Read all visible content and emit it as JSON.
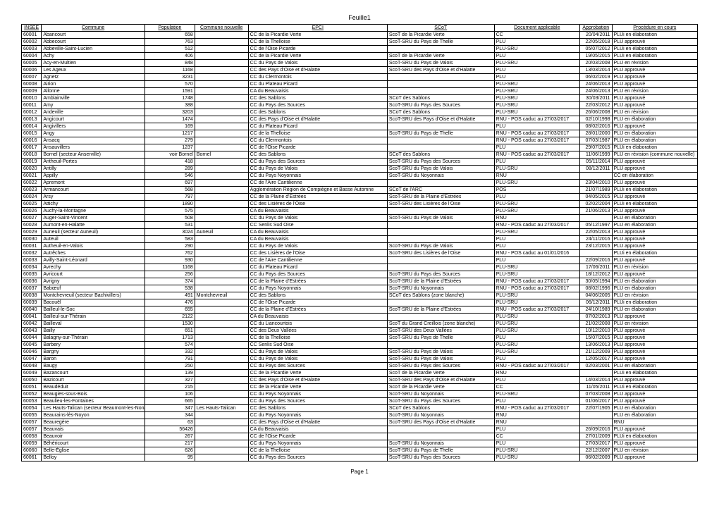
{
  "title": "Feuille1",
  "footer": "Page 1",
  "headers": [
    "INSEE",
    "Commune",
    "Population",
    "Commune nouvelle",
    "EPCI",
    "SCoT",
    "Document applicable",
    "Approbation",
    "Procédure en cours"
  ],
  "rows": [
    [
      "60001",
      "Abancourt",
      "658",
      "",
      "CC de la Picardie Verte",
      "ScoT de la Picardie Verte",
      "CC",
      "20/04/2011",
      "PLUi en élaboration"
    ],
    [
      "60002",
      "Abbecourt",
      "763",
      "",
      "CC de la Thelloise",
      "ScoT-SRU du Pays de Thelle",
      "PLU",
      "22/05/2018",
      "PLU approuvé"
    ],
    [
      "60003",
      "Abbeville-Saint-Lucien",
      "512",
      "",
      "CC de l'Oise Picarde",
      "",
      "PLU-SRU",
      "05/07/2012",
      "PLUi en élaboration"
    ],
    [
      "60004",
      "Achy",
      "406",
      "",
      "CC de la Picardie Verte",
      "ScoT de la Picardie Verte",
      "PLU",
      "19/05/2015",
      "PLUi en élaboration"
    ],
    [
      "60005",
      "Acy-en-Multien",
      "848",
      "",
      "CC du Pays de Valois",
      "ScoT-SRU du Pays de Valois",
      "PLU-SRU",
      "20/03/2008",
      "PLU en révision"
    ],
    [
      "60006",
      "Les Ageux",
      "1168",
      "",
      "CC des Pays d'Oise et d'Halatte",
      "ScoT-SRU des Pays d'Oise et d'Halatte",
      "PLU",
      "13/03/2014",
      "PLU approuvé"
    ],
    [
      "60007",
      "Agnetz",
      "3231",
      "",
      "CC du Clermontois",
      "",
      "PLU",
      "06/02/2019",
      "PLU approuvé"
    ],
    [
      "60008",
      "Airion",
      "570",
      "",
      "CC du Plateau Picard",
      "",
      "PLU-SRU",
      "24/06/2013",
      "PLU approuvé"
    ],
    [
      "60009",
      "Allonne",
      "1591",
      "",
      "CA du Beauvaisis",
      "",
      "PLU-SRU",
      "24/06/2013",
      "PLU en révision"
    ],
    [
      "60010",
      "Amblainville",
      "1748",
      "",
      "CC des Sablons",
      "SCoT des Sablons",
      "PLU-SRU",
      "30/03/2011",
      "PLU approuvé"
    ],
    [
      "60011",
      "Amy",
      "388",
      "",
      "CC du Pays des Sources",
      "ScoT-SRU du Pays des Sources",
      "PLU-SRU",
      "22/03/2012",
      "PLU approuvé"
    ],
    [
      "60012",
      "Andeville",
      "3203",
      "",
      "CC des Sablons",
      "SCoT des Sablons",
      "PLU-SRU",
      "26/06/2008",
      "PLU en révision"
    ],
    [
      "60013",
      "Angicourt",
      "1474",
      "",
      "CC des Pays d'Oise et d'Halatte",
      "ScoT-SRU des Pays d'Oise et d'Halatte",
      "RNU - POS caduc au 27/03/2017",
      "02/10/1998",
      "PLU en élaboration"
    ],
    [
      "60014",
      "Angivillers",
      "169",
      "",
      "CC du Plateau Picard",
      "",
      "PLU",
      "08/02/2016",
      "PLU approuvé"
    ],
    [
      "60015",
      "Angy",
      "1217",
      "",
      "CC de la Thelloise",
      "ScoT-SRU du Pays de Thelle",
      "RNU - POS caduc au 27/03/2017",
      "28/01/2000",
      "PLU en élaboration"
    ],
    [
      "60016",
      "Ansacq",
      "279",
      "",
      "CC du Clermontois",
      "",
      "RNU - POS caduc au 27/03/2017",
      "07/03/1987",
      "PLU en élaboration"
    ],
    [
      "60017",
      "Ansauvillers",
      "1237",
      "",
      "CC de l'Oise Picarde",
      "",
      "PLU",
      "29/07/2015",
      "PLUi en élaboration"
    ],
    [
      "60018",
      "Bornel (secteur Anserville)",
      "voir Bornel",
      "Bornel",
      "CC des Sablons",
      "SCoT des Sablons",
      "RNU - POS caduc au 27/03/2017",
      "11/06/1999",
      "PLU en révision (commune nouvelle)"
    ],
    [
      "60019",
      "Antheuil-Portes",
      "418",
      "",
      "CC du Pays des Sources",
      "ScoT-SRU du Pays des Sources",
      "PLU",
      "05/11/2014",
      "PLU approuvé"
    ],
    [
      "60020",
      "Antilly",
      "289",
      "",
      "CC du Pays de Valois",
      "ScoT-SRU du Pays de Valois",
      "PLU-SRU",
      "08/12/2011",
      "PLU approuvé"
    ],
    [
      "60021",
      "Appilly",
      "546",
      "",
      "CC du Pays Noyonnais",
      "ScoT-SRU du Noyonnais",
      "RNU",
      "",
      "CC en élaboration"
    ],
    [
      "60022",
      "Apremont",
      "697",
      "",
      "CC de l'Aire Cantilienne",
      "",
      "PLU-SRU",
      "23/04/2010",
      "PLU approuvé"
    ],
    [
      "60023",
      "Armancourt",
      "568",
      "",
      "Agglomération Région de Compiègne et Basse Automne",
      "SCoT de l'ARC",
      "POS",
      "21/07/1989",
      "PLUi en élaboration"
    ],
    [
      "60024",
      "Arsy",
      "797",
      "",
      "CC de la Plaine d'Estrées",
      "ScoT-SRU de la Plaine d'Estrées",
      "PLU",
      "04/05/2015",
      "PLU approuvé"
    ],
    [
      "60025",
      "Attichy",
      "1890",
      "",
      "CC des Lisières de l'Oise",
      "ScoT-SRU des Lisières de l'Oise",
      "PLU-SRU",
      "02/02/2004",
      "PLUi en élaboration"
    ],
    [
      "60026",
      "Auchy-la-Montagne",
      "575",
      "",
      "CA du Beauvaisis",
      "",
      "PLU-SRU",
      "21/06/2013",
      "PLU approuvé"
    ],
    [
      "60027",
      "Auger-Saint-Vincent",
      "508",
      "",
      "CC du Pays de Valois",
      "ScoT-SRU du Pays de Valois",
      "RNU",
      "",
      "PLU en élaboration"
    ],
    [
      "60028",
      "Aumont-en-Halatte",
      "531",
      "",
      "CC Senlis Sud Oise",
      "",
      "RNU - POS caduc au 27/03/2017",
      "05/12/1997",
      "PLU en élaboration"
    ],
    [
      "60029",
      "Auneuil (secteur Auneuil)",
      "3024",
      "Auneuil",
      "CA du Beauvaisis",
      "",
      "PLU-SRU",
      "22/05/2013",
      "PLU approuvé"
    ],
    [
      "60030",
      "Auteuil",
      "583",
      "",
      "CA du Beauvaisis",
      "",
      "PLU",
      "24/11/2016",
      "PLU approuvé"
    ],
    [
      "60031",
      "Autheuil-en-Valois",
      "290",
      "",
      "CC du Pays de Valois",
      "ScoT-SRU du Pays de Valois",
      "PLU",
      "23/12/2015",
      "PLU approuvé"
    ],
    [
      "60032",
      "Autrêches",
      "762",
      "",
      "CC des Lisières de l'Oise",
      "ScoT-SRU des Lisières de l'Oise",
      "RNU - POS caduc au 01/01/2016",
      "",
      "PLUi en élaboration"
    ],
    [
      "60033",
      "Avilly-Saint-Léonard",
      "930",
      "",
      "CC de l'Aire Cantilienne",
      "",
      "PLU",
      "22/09/2016",
      "PLU approuvé"
    ],
    [
      "60034",
      "Avrechy",
      "1168",
      "",
      "CC du Plateau Picard",
      "",
      "PLU-SRU",
      "17/06/2011",
      "PLU en révision"
    ],
    [
      "60035",
      "Avricourt",
      "256",
      "",
      "CC du Pays des Sources",
      "ScoT-SRU du Pays des Sources",
      "PLU-SRU",
      "18/12/2012",
      "PLU approuvé"
    ],
    [
      "60036",
      "Avrigny",
      "374",
      "",
      "CC de la Plaine d'Estrées",
      "ScoT-SRU de la Plaine d'Estrées",
      "RNU - POS caduc au 27/03/2017",
      "30/05/1994",
      "PLU en élaboration"
    ],
    [
      "60037",
      "Babœuf",
      "538",
      "",
      "CC du Pays Noyonnais",
      "ScoT-SRU du Noyonnais",
      "RNU - POS caduc au 27/03/2017",
      "08/02/1996",
      "PLU en élaboration"
    ],
    [
      "60038",
      "Montchevreuil (secteur Bachivillers)",
      "491",
      "Montchevreuil",
      "CC des Sablons",
      "SCoT des Sablons (zone blanche)",
      "PLU-SRU",
      "04/06/2005",
      "PLU en révision"
    ],
    [
      "60039",
      "Bacouël",
      "476",
      "",
      "CC de l'Oise Picarde",
      "",
      "PLU-SRU",
      "06/12/2011",
      "PLUi en élaboration"
    ],
    [
      "60040",
      "Bailleul-le-Soc",
      "655",
      "",
      "CC de la Plaine d'Estrées",
      "ScoT-SRU de la Plaine d'Estrées",
      "RNU - POS caduc au 27/03/2017",
      "24/10/1989",
      "PLU en élaboration"
    ],
    [
      "60041",
      "Bailleul-sur-Thérain",
      "2122",
      "",
      "CA du Beauvaisis",
      "",
      "PLU-SRU",
      "07/02/2013",
      "PLU approuvé"
    ],
    [
      "60042",
      "Bailleval",
      "1530",
      "",
      "CC du Liancourtois",
      "ScoT du Grand Creillois (zone blanche)",
      "PLU-SRU",
      "21/02/2008",
      "PLU en révision"
    ],
    [
      "60043",
      "Bailly",
      "651",
      "",
      "CC des Deux Vallées",
      "ScoT-SRU des Deux Vallées",
      "PLU-SRU",
      "10/12/2010",
      "PLU approuvé"
    ],
    [
      "60044",
      "Balagny-sur-Thérain",
      "1713",
      "",
      "CC de la Thelloise",
      "ScoT-SRU du Pays de Thelle",
      "PLU",
      "15/07/2015",
      "PLU approuvé"
    ],
    [
      "60045",
      "Barbery",
      "574",
      "",
      "CC Senlis Sud Oise",
      "",
      "PLU-SRU",
      "13/06/2013",
      "PLU approuvé"
    ],
    [
      "60046",
      "Bargny",
      "332",
      "",
      "CC du Pays de Valois",
      "ScoT-SRU du Pays de Valois",
      "PLU-SRU",
      "21/12/2009",
      "PLU approuvé"
    ],
    [
      "60047",
      "Baron",
      "791",
      "",
      "CC du Pays de Valois",
      "ScoT-SRU du Pays de Valois",
      "PLU",
      "12/05/2017",
      "PLU approuvé"
    ],
    [
      "60048",
      "Baugy",
      "250",
      "",
      "CC du Pays des Sources",
      "ScoT-SRU du Pays des Sources",
      "RNU - POS caduc au 27/03/2017",
      "02/03/2001",
      "PLU en élaboration"
    ],
    [
      "60049",
      "Bazancourt",
      "139",
      "",
      "CC de la Picardie Verte",
      "ScoT de la Picardie Verte",
      "RNU",
      "",
      "PLUi en élaboration"
    ],
    [
      "60050",
      "Bazicourt",
      "327",
      "",
      "CC des Pays d'Oise et d'Halatte",
      "ScoT-SRU des Pays d'Oise et d'Halatte",
      "PLU",
      "14/03/2014",
      "PLU approuvé"
    ],
    [
      "60051",
      "Beaudéduit",
      "215",
      "",
      "CC de la Picardie Verte",
      "ScoT de la Picardie Verte",
      "CC",
      "11/05/2011",
      "PLUi en élaboration"
    ],
    [
      "60052",
      "Beaugies-sous-Bois",
      "106",
      "",
      "CC du Pays Noyonnais",
      "ScoT-SRU du Noyonnais",
      "PLU-SRU",
      "07/03/2008",
      "PLU approuvé"
    ],
    [
      "60053",
      "Beaulieu-les-Fontaines",
      "665",
      "",
      "CC du Pays des Sources",
      "ScoT-SRU du Pays des Sources",
      "PLU",
      "01/06/2017",
      "PLU approuvé"
    ],
    [
      "60054",
      "Les Hauts-Talican (secteur Beaumont-les-Nonains)",
      "347",
      "Les Hauts-Talican",
      "CC des Sablons",
      "SCoT des Sablons",
      "RNU - POS caduc au 27/03/2017",
      "22/07/1905",
      "PLU en élaboration"
    ],
    [
      "60055",
      "Beaurains-lès-Noyon",
      "344",
      "",
      "CC du Pays Noyonnais",
      "ScoT-SRU du Noyonnais",
      "RNU",
      "",
      "PLU en élaboration"
    ],
    [
      "60057",
      "Beauregère",
      "63",
      "",
      "CC des Pays d'Oise et d'Halatte",
      "ScoT-SRU des Pays d'Oise et d'Halatte",
      "RNU",
      "",
      "RNU"
    ],
    [
      "60057",
      "Beauvais",
      "56426",
      "",
      "CA du Beauvaisis",
      "",
      "PLU",
      "26/09/2016",
      "PLU approuvé"
    ],
    [
      "60058",
      "Beauvoir",
      "267",
      "",
      "CC de l'Oise Picarde",
      "",
      "CC",
      "27/01/2009",
      "PLUi en élaboration"
    ],
    [
      "60059",
      "Béhéricourt",
      "217",
      "",
      "CC du Pays Noyonnais",
      "ScoT-SRU du Noyonnais",
      "PLU",
      "27/03/2017",
      "PLU approuvé"
    ],
    [
      "60060",
      "Belle-Église",
      "626",
      "",
      "CC de la Thelloise",
      "ScoT-SRU du Pays de Thelle",
      "PLU-SRU",
      "22/12/2007",
      "PLU en révision"
    ],
    [
      "60061",
      "Belloy",
      "95",
      "",
      "CC du Pays des Sources",
      "ScoT-SRU du Pays des Sources",
      "PLU-SRU",
      "06/02/2009",
      "PLU approuvé"
    ]
  ]
}
